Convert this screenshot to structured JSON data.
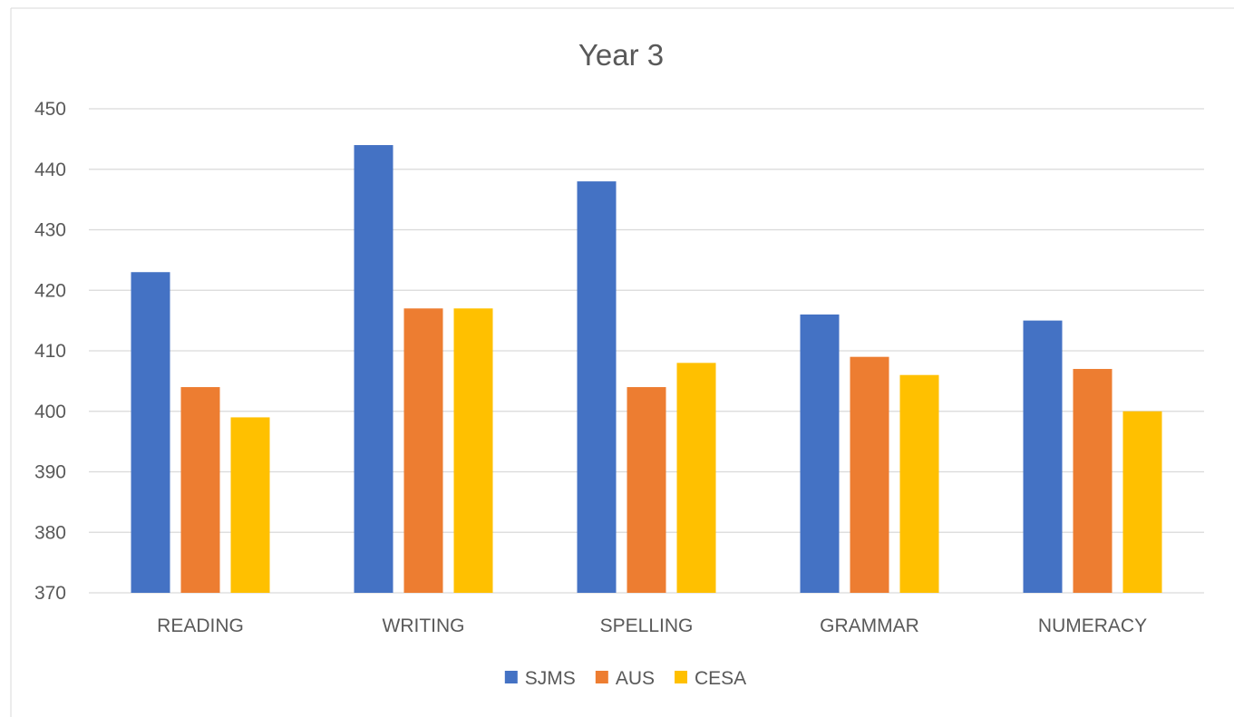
{
  "chart_data": {
    "type": "bar",
    "title": "Year 3",
    "xlabel": "",
    "ylabel": "",
    "categories": [
      "READING",
      "WRITING",
      "SPELLING",
      "GRAMMAR",
      "NUMERACY"
    ],
    "series": [
      {
        "name": "SJMS",
        "color": "#4472c4",
        "values": [
          423,
          444,
          438,
          416,
          415
        ]
      },
      {
        "name": "AUS",
        "color": "#ed7d31",
        "values": [
          404,
          417,
          404,
          409,
          407
        ]
      },
      {
        "name": "CESA",
        "color": "#ffc000",
        "values": [
          399,
          417,
          408,
          406,
          400
        ]
      }
    ],
    "ylim": [
      370,
      450
    ],
    "yticks": [
      370,
      380,
      390,
      400,
      410,
      420,
      430,
      440,
      450
    ],
    "grid": true,
    "legend_position": "bottom"
  }
}
